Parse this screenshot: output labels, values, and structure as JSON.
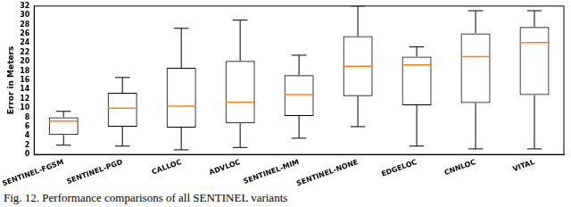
{
  "chart_data": {
    "type": "box",
    "categories": [
      "SENTINEL-FGSM",
      "SENTINEL-PGD",
      "CALLOC",
      "ADVLOC",
      "SENTINEL-MIM",
      "SENTINEL-NONE",
      "EDGELOC",
      "CNNLOC",
      "VITAL"
    ],
    "min": [
      2,
      1.8,
      1,
      1.5,
      3.5,
      6,
      1.8,
      1.2,
      1.2
    ],
    "q1": [
      4.2,
      6,
      5.8,
      6.7,
      8.3,
      12.6,
      10.6,
      11.1,
      12.8
    ],
    "median": [
      7.2,
      10,
      10.4,
      11.3,
      12.9,
      19,
      19.3,
      21.1,
      24.1
    ],
    "q3": [
      8,
      13.3,
      18.7,
      20.2,
      17.1,
      25.5,
      21.1,
      26.1,
      27.5
    ],
    "max": [
      9.3,
      16.6,
      27.2,
      29,
      21.4,
      32,
      23.2,
      31,
      31
    ],
    "y_label": "Error in Meters",
    "ylim": [
      0,
      32
    ],
    "yticks": [
      0,
      2,
      4,
      6,
      8,
      10,
      12,
      14,
      16,
      18,
      20,
      22,
      24,
      26,
      28,
      30,
      32
    ],
    "color": "#000000",
    "grid": false,
    "caption": "Fig. 12. Performance comparisons of all SENTINEL variants"
  }
}
